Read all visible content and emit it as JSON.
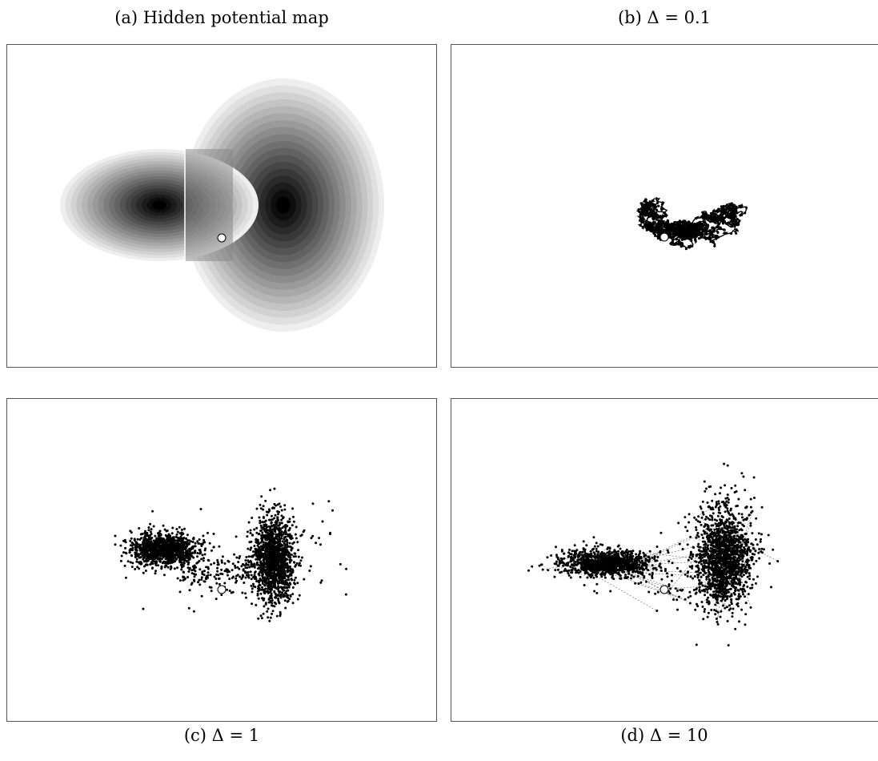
{
  "captions": {
    "a": "(a) Hidden potential map",
    "b": "(b) Δ = 0.1",
    "c": "(c) Δ = 1",
    "d": "(d) Δ = 10"
  },
  "colors": {
    "background": "#ffffff",
    "frame": "#555555",
    "points": "#000000",
    "start_marker_fill": "#ffffff",
    "potential_light": "#eeeeee",
    "potential_dark": "#000000"
  },
  "potential": {
    "levels": 18,
    "basins": [
      "left-basin",
      "right-basin"
    ]
  },
  "walks": {
    "b": {
      "step": 0.1,
      "style": "connected-dense"
    },
    "c": {
      "step": 1,
      "style": "scattered-clusters"
    },
    "d": {
      "step": 10,
      "style": "scattered-with-dashed-jumps"
    }
  }
}
